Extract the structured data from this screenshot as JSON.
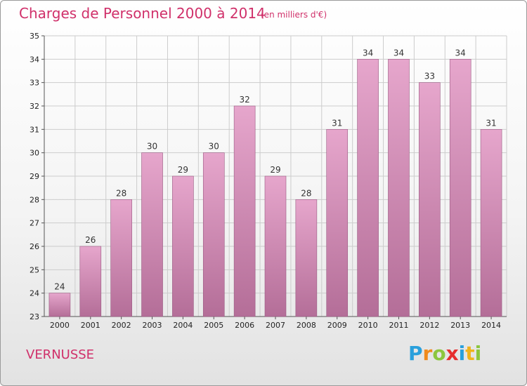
{
  "title": "Charges de Personnel 2000 à 2014",
  "subtitle": "(en milliers d'€)",
  "commune": "VERNUSSE",
  "logo": {
    "letters": [
      "P",
      "r",
      "o",
      "x",
      "i",
      "t",
      "i"
    ],
    "colors": [
      "#2aa0dc",
      "#f08a1c",
      "#8cc63e",
      "#e62d2d",
      "#2aa0dc",
      "#f0b41c",
      "#8cc63e"
    ]
  },
  "colors": {
    "text_accent": "#d0306a",
    "bar_top": "#e6a6cc",
    "bar_bottom": "#b46e98",
    "bar_stroke": "#9a5a82",
    "grid": "#cccccc",
    "axis": "#555555"
  },
  "chart_data": {
    "type": "bar",
    "categories": [
      "2000",
      "2001",
      "2002",
      "2003",
      "2004",
      "2005",
      "2006",
      "2007",
      "2008",
      "2009",
      "2010",
      "2011",
      "2012",
      "2013",
      "2014"
    ],
    "values": [
      24,
      26,
      28,
      30,
      29,
      30,
      32,
      29,
      28,
      31,
      34,
      34,
      33,
      34,
      31
    ],
    "ylim": [
      23,
      35
    ],
    "yticks": [
      23,
      24,
      25,
      26,
      27,
      28,
      29,
      30,
      31,
      32,
      33,
      34,
      35
    ],
    "grid": true,
    "data_labels": true
  }
}
